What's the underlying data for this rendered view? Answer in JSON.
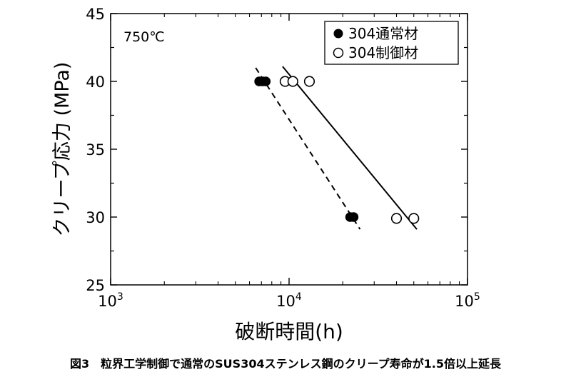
{
  "chart_data": {
    "type": "scatter",
    "xscale": "log",
    "xlim": [
      1000,
      100000
    ],
    "ylim": [
      25,
      45
    ],
    "xlabel": "破断時間(h)",
    "ylabel": "クリープ応力 (MPa)",
    "annotation": "750℃",
    "x_ticks": [
      {
        "base": "10",
        "exp": "3",
        "value": 1000
      },
      {
        "base": "10",
        "exp": "4",
        "value": 10000
      },
      {
        "base": "10",
        "exp": "5",
        "value": 100000
      }
    ],
    "y_ticks": [
      "25",
      "30",
      "35",
      "40",
      "45"
    ],
    "legend_position": "top-right",
    "series": [
      {
        "name": "304通常材",
        "marker": "filled-circle",
        "points": [
          {
            "x": 6800,
            "y": 40
          },
          {
            "x": 7100,
            "y": 40
          },
          {
            "x": 7400,
            "y": 40
          },
          {
            "x": 22000,
            "y": 30
          },
          {
            "x": 23000,
            "y": 30
          }
        ],
        "fit": {
          "style": "dashed",
          "from": {
            "x": 6500,
            "y": 41
          },
          "to": {
            "x": 25000,
            "y": 29.1
          }
        }
      },
      {
        "name": "304制御材",
        "marker": "open-circle",
        "points": [
          {
            "x": 9500,
            "y": 40
          },
          {
            "x": 10500,
            "y": 40
          },
          {
            "x": 13000,
            "y": 40
          },
          {
            "x": 40000,
            "y": 29.9
          },
          {
            "x": 50000,
            "y": 29.9
          }
        ],
        "fit": {
          "style": "solid",
          "from": {
            "x": 9200,
            "y": 41.1
          },
          "to": {
            "x": 52000,
            "y": 29.1
          }
        }
      }
    ]
  },
  "caption": "図3　粒界工学制御で通常のSUS304ステンレス鋼のクリープ寿命が1.5倍以上延長"
}
